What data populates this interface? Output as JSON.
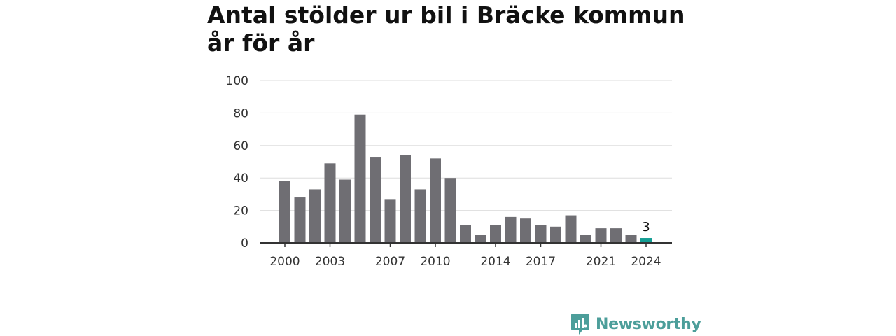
{
  "title": "Antal stölder ur bil i Bräcke kommun år för år",
  "brand": {
    "name": "Newsworthy",
    "icon": "newsworthy-logo-icon",
    "color": "#4c9e9a"
  },
  "colors": {
    "bar": "#6f6e73",
    "highlight": "#139d93",
    "grid": "#dddddd",
    "axis": "#333333"
  },
  "chart_data": {
    "type": "bar",
    "title": "Antal stölder ur bil i Bräcke kommun år för år",
    "xlabel": "",
    "ylabel": "",
    "ylim": [
      0,
      100
    ],
    "y_ticks": [
      0,
      20,
      40,
      60,
      80,
      100
    ],
    "x_tick_labels": [
      "2000",
      "2003",
      "2007",
      "2010",
      "2014",
      "2017",
      "2021",
      "2024"
    ],
    "grid": true,
    "categories": [
      2000,
      2001,
      2002,
      2003,
      2004,
      2005,
      2006,
      2007,
      2008,
      2009,
      2010,
      2011,
      2012,
      2013,
      2014,
      2015,
      2016,
      2017,
      2018,
      2019,
      2020,
      2021,
      2022,
      2023,
      2024
    ],
    "values": [
      38,
      28,
      33,
      49,
      39,
      79,
      53,
      27,
      54,
      33,
      52,
      40,
      11,
      5,
      11,
      16,
      15,
      11,
      10,
      17,
      5,
      9,
      9,
      5,
      3
    ],
    "highlight_index": 24,
    "data_labels": [
      {
        "index": 24,
        "text": "3"
      }
    ]
  }
}
